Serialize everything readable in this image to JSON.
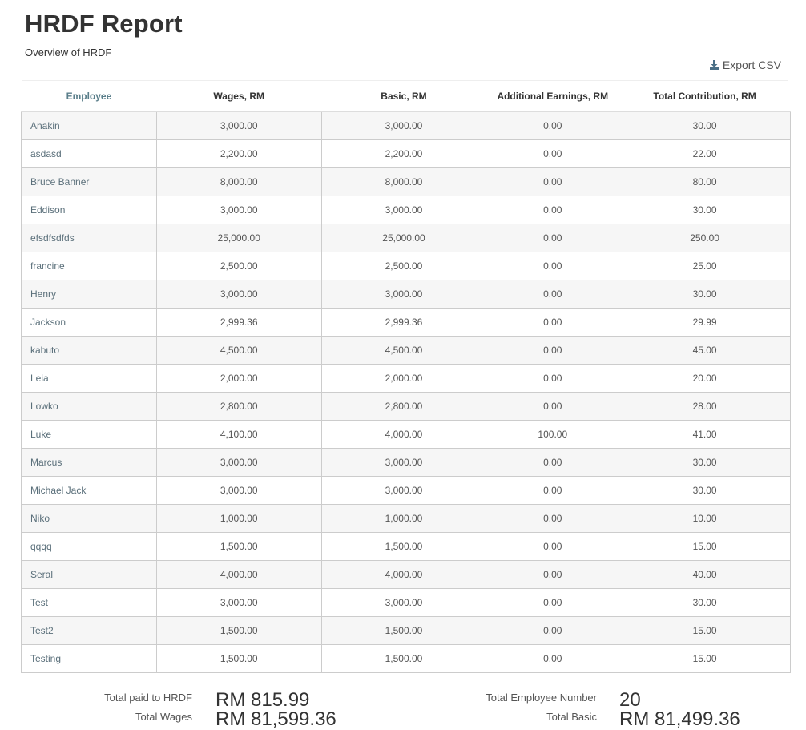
{
  "header": {
    "title": "HRDF Report",
    "subtitle": "Overview of HRDF",
    "export_label": "Export CSV",
    "export_icon": "download-export-icon"
  },
  "table": {
    "columns": [
      "Employee",
      "Wages, RM",
      "Basic, RM",
      "Additional Earnings, RM",
      "Total Contribution, RM"
    ],
    "rows": [
      {
        "employee": "Anakin",
        "wages": "3,000.00",
        "basic": "3,000.00",
        "additional": "0.00",
        "total": "30.00"
      },
      {
        "employee": "asdasd",
        "wages": "2,200.00",
        "basic": "2,200.00",
        "additional": "0.00",
        "total": "22.00"
      },
      {
        "employee": "Bruce Banner",
        "wages": "8,000.00",
        "basic": "8,000.00",
        "additional": "0.00",
        "total": "80.00"
      },
      {
        "employee": "Eddison",
        "wages": "3,000.00",
        "basic": "3,000.00",
        "additional": "0.00",
        "total": "30.00"
      },
      {
        "employee": "efsdfsdfds",
        "wages": "25,000.00",
        "basic": "25,000.00",
        "additional": "0.00",
        "total": "250.00"
      },
      {
        "employee": "francine",
        "wages": "2,500.00",
        "basic": "2,500.00",
        "additional": "0.00",
        "total": "25.00"
      },
      {
        "employee": "Henry",
        "wages": "3,000.00",
        "basic": "3,000.00",
        "additional": "0.00",
        "total": "30.00"
      },
      {
        "employee": "Jackson",
        "wages": "2,999.36",
        "basic": "2,999.36",
        "additional": "0.00",
        "total": "29.99"
      },
      {
        "employee": "kabuto",
        "wages": "4,500.00",
        "basic": "4,500.00",
        "additional": "0.00",
        "total": "45.00"
      },
      {
        "employee": "Leia",
        "wages": "2,000.00",
        "basic": "2,000.00",
        "additional": "0.00",
        "total": "20.00"
      },
      {
        "employee": "Lowko",
        "wages": "2,800.00",
        "basic": "2,800.00",
        "additional": "0.00",
        "total": "28.00"
      },
      {
        "employee": "Luke",
        "wages": "4,100.00",
        "basic": "4,000.00",
        "additional": "100.00",
        "total": "41.00"
      },
      {
        "employee": "Marcus",
        "wages": "3,000.00",
        "basic": "3,000.00",
        "additional": "0.00",
        "total": "30.00"
      },
      {
        "employee": "Michael Jack",
        "wages": "3,000.00",
        "basic": "3,000.00",
        "additional": "0.00",
        "total": "30.00"
      },
      {
        "employee": "Niko",
        "wages": "1,000.00",
        "basic": "1,000.00",
        "additional": "0.00",
        "total": "10.00"
      },
      {
        "employee": "qqqq",
        "wages": "1,500.00",
        "basic": "1,500.00",
        "additional": "0.00",
        "total": "15.00"
      },
      {
        "employee": "Seral",
        "wages": "4,000.00",
        "basic": "4,000.00",
        "additional": "0.00",
        "total": "40.00"
      },
      {
        "employee": "Test",
        "wages": "3,000.00",
        "basic": "3,000.00",
        "additional": "0.00",
        "total": "30.00"
      },
      {
        "employee": "Test2",
        "wages": "1,500.00",
        "basic": "1,500.00",
        "additional": "0.00",
        "total": "15.00"
      },
      {
        "employee": "Testing",
        "wages": "1,500.00",
        "basic": "1,500.00",
        "additional": "0.00",
        "total": "15.00"
      }
    ]
  },
  "summary": {
    "total_paid_label": "Total paid to HRDF",
    "total_paid_value": "RM 815.99",
    "total_wages_label": "Total Wages",
    "total_wages_value": "RM 81,599.36",
    "total_employee_label": "Total Employee Number",
    "total_employee_value": "20",
    "total_basic_label": "Total Basic",
    "total_basic_value": "RM 81,499.36"
  },
  "colors": {
    "employee_header": "#5a7e8a",
    "row_stripe": "#f6f6f6",
    "border": "#cccccc"
  }
}
